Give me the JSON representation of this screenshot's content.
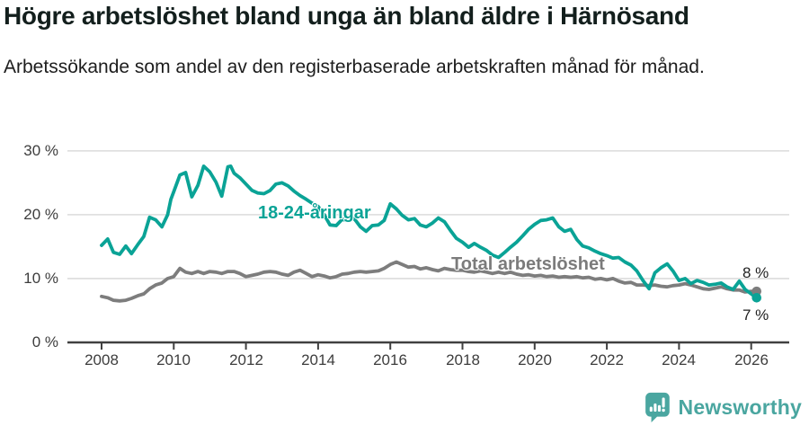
{
  "header": {
    "title": "Högre arbetslöshet bland unga än bland äldre i Härnösand",
    "subtitle": "Arbetssökande som andel av den registerbaserade arbetskraften månad för månad."
  },
  "chart_data": {
    "type": "line",
    "title": "Högre arbetslöshet bland unga än bland äldre i Härnösand",
    "subtitle": "Arbetssökande som andel av den registerbaserade arbetskraften månad för månad.",
    "unit": "%",
    "xlabel": "",
    "ylabel": "",
    "grid": true,
    "grid_color": "#e0e0e0",
    "axis_color": "#404040",
    "x_axis": {
      "min": 2007.05,
      "max": 2027.1,
      "ticks": [
        {
          "value": 2008,
          "label": "2008"
        },
        {
          "value": 2010,
          "label": "2010"
        },
        {
          "value": 2012,
          "label": "2012"
        },
        {
          "value": 2014,
          "label": "2014"
        },
        {
          "value": 2016,
          "label": "2016"
        },
        {
          "value": 2018,
          "label": "2018"
        },
        {
          "value": 2020,
          "label": "2020"
        },
        {
          "value": 2022,
          "label": "2022"
        },
        {
          "value": 2024,
          "label": "2024"
        },
        {
          "value": 2026,
          "label": "2026"
        }
      ]
    },
    "y_axis": {
      "min": 0,
      "max": 32,
      "gridlines": [
        30,
        20,
        10
      ],
      "ticks": [
        {
          "value": 30,
          "label": "30 %"
        },
        {
          "value": 20,
          "label": "20 %"
        },
        {
          "value": 10,
          "label": "10 %"
        },
        {
          "value": 0,
          "label": "0 %"
        }
      ]
    },
    "series": [
      {
        "id": "young",
        "name": "18-24-åringar",
        "color": "#0aa396",
        "end_label": "7 %",
        "end_value": 7,
        "points": [
          [
            2008.0,
            15.2
          ],
          [
            2008.17,
            16.2
          ],
          [
            2008.33,
            14.1
          ],
          [
            2008.5,
            13.8
          ],
          [
            2008.67,
            15.1
          ],
          [
            2008.83,
            13.9
          ],
          [
            2009.0,
            15.3
          ],
          [
            2009.17,
            16.6
          ],
          [
            2009.33,
            19.6
          ],
          [
            2009.5,
            19.2
          ],
          [
            2009.67,
            18.1
          ],
          [
            2009.83,
            20.0
          ],
          [
            2009.92,
            22.4
          ],
          [
            2010.0,
            23.6
          ],
          [
            2010.17,
            26.2
          ],
          [
            2010.33,
            26.6
          ],
          [
            2010.5,
            22.8
          ],
          [
            2010.67,
            24.6
          ],
          [
            2010.83,
            27.6
          ],
          [
            2011.0,
            26.7
          ],
          [
            2011.17,
            25.1
          ],
          [
            2011.33,
            22.9
          ],
          [
            2011.5,
            27.5
          ],
          [
            2011.58,
            27.6
          ],
          [
            2011.67,
            26.5
          ],
          [
            2011.83,
            25.8
          ],
          [
            2012.0,
            24.8
          ],
          [
            2012.17,
            23.8
          ],
          [
            2012.33,
            23.4
          ],
          [
            2012.5,
            23.3
          ],
          [
            2012.67,
            23.8
          ],
          [
            2012.83,
            24.8
          ],
          [
            2013.0,
            25.0
          ],
          [
            2013.17,
            24.5
          ],
          [
            2013.33,
            23.7
          ],
          [
            2013.5,
            23.0
          ],
          [
            2013.67,
            22.4
          ],
          [
            2013.83,
            21.8
          ],
          [
            2014.0,
            21.3
          ],
          [
            2014.17,
            20.0
          ],
          [
            2014.33,
            18.4
          ],
          [
            2014.5,
            18.3
          ],
          [
            2014.67,
            19.3
          ],
          [
            2014.83,
            19.0
          ],
          [
            2015.0,
            19.4
          ],
          [
            2015.17,
            18.1
          ],
          [
            2015.33,
            17.4
          ],
          [
            2015.5,
            18.3
          ],
          [
            2015.67,
            18.4
          ],
          [
            2015.83,
            19.1
          ],
          [
            2016.0,
            21.7
          ],
          [
            2016.17,
            20.9
          ],
          [
            2016.33,
            19.9
          ],
          [
            2016.5,
            19.2
          ],
          [
            2016.67,
            19.4
          ],
          [
            2016.83,
            18.4
          ],
          [
            2017.0,
            18.1
          ],
          [
            2017.17,
            18.7
          ],
          [
            2017.33,
            19.5
          ],
          [
            2017.5,
            18.9
          ],
          [
            2017.67,
            17.5
          ],
          [
            2017.83,
            16.3
          ],
          [
            2018.0,
            15.7
          ],
          [
            2018.17,
            14.9
          ],
          [
            2018.33,
            15.5
          ],
          [
            2018.5,
            14.9
          ],
          [
            2018.67,
            14.4
          ],
          [
            2018.83,
            13.7
          ],
          [
            2019.0,
            13.3
          ],
          [
            2019.17,
            14.1
          ],
          [
            2019.33,
            14.9
          ],
          [
            2019.5,
            15.7
          ],
          [
            2019.67,
            16.7
          ],
          [
            2019.83,
            17.7
          ],
          [
            2020.0,
            18.5
          ],
          [
            2020.17,
            19.1
          ],
          [
            2020.33,
            19.2
          ],
          [
            2020.5,
            19.5
          ],
          [
            2020.67,
            18.1
          ],
          [
            2020.83,
            17.4
          ],
          [
            2021.0,
            17.7
          ],
          [
            2021.17,
            16.1
          ],
          [
            2021.33,
            15.1
          ],
          [
            2021.5,
            14.8
          ],
          [
            2021.67,
            14.3
          ],
          [
            2021.83,
            13.9
          ],
          [
            2022.0,
            13.6
          ],
          [
            2022.17,
            13.2
          ],
          [
            2022.33,
            13.3
          ],
          [
            2022.5,
            12.6
          ],
          [
            2022.67,
            12.1
          ],
          [
            2022.83,
            11.2
          ],
          [
            2023.0,
            9.7
          ],
          [
            2023.17,
            8.4
          ],
          [
            2023.33,
            10.9
          ],
          [
            2023.5,
            11.7
          ],
          [
            2023.67,
            12.3
          ],
          [
            2023.83,
            11.2
          ],
          [
            2024.0,
            9.7
          ],
          [
            2024.17,
            10.0
          ],
          [
            2024.33,
            9.2
          ],
          [
            2024.5,
            9.7
          ],
          [
            2024.67,
            9.4
          ],
          [
            2024.83,
            9.0
          ],
          [
            2025.0,
            9.1
          ],
          [
            2025.17,
            9.3
          ],
          [
            2025.33,
            8.7
          ],
          [
            2025.5,
            8.3
          ],
          [
            2025.67,
            9.6
          ],
          [
            2025.83,
            8.3
          ],
          [
            2026.0,
            7.6
          ],
          [
            2026.15,
            7.0
          ]
        ]
      },
      {
        "id": "total",
        "name": "Total arbetslöshet",
        "color": "#7d7d7d",
        "end_label": "8 %",
        "end_value": 8,
        "points": [
          [
            2008.0,
            7.2
          ],
          [
            2008.17,
            7.0
          ],
          [
            2008.33,
            6.6
          ],
          [
            2008.5,
            6.5
          ],
          [
            2008.67,
            6.6
          ],
          [
            2008.83,
            6.9
          ],
          [
            2009.0,
            7.3
          ],
          [
            2009.17,
            7.6
          ],
          [
            2009.33,
            8.4
          ],
          [
            2009.5,
            9.0
          ],
          [
            2009.67,
            9.3
          ],
          [
            2009.83,
            10.0
          ],
          [
            2010.0,
            10.3
          ],
          [
            2010.17,
            11.6
          ],
          [
            2010.33,
            11.0
          ],
          [
            2010.5,
            10.8
          ],
          [
            2010.67,
            11.1
          ],
          [
            2010.83,
            10.8
          ],
          [
            2011.0,
            11.1
          ],
          [
            2011.17,
            11.0
          ],
          [
            2011.33,
            10.8
          ],
          [
            2011.5,
            11.1
          ],
          [
            2011.67,
            11.1
          ],
          [
            2011.83,
            10.8
          ],
          [
            2012.0,
            10.3
          ],
          [
            2012.17,
            10.5
          ],
          [
            2012.33,
            10.7
          ],
          [
            2012.5,
            11.0
          ],
          [
            2012.67,
            11.1
          ],
          [
            2012.83,
            11.0
          ],
          [
            2013.0,
            10.7
          ],
          [
            2013.17,
            10.5
          ],
          [
            2013.33,
            11.0
          ],
          [
            2013.5,
            11.3
          ],
          [
            2013.67,
            10.8
          ],
          [
            2013.83,
            10.3
          ],
          [
            2014.0,
            10.6
          ],
          [
            2014.17,
            10.4
          ],
          [
            2014.33,
            10.1
          ],
          [
            2014.5,
            10.3
          ],
          [
            2014.67,
            10.7
          ],
          [
            2014.83,
            10.8
          ],
          [
            2015.0,
            11.0
          ],
          [
            2015.17,
            11.1
          ],
          [
            2015.33,
            11.0
          ],
          [
            2015.5,
            11.1
          ],
          [
            2015.67,
            11.2
          ],
          [
            2015.83,
            11.6
          ],
          [
            2016.0,
            12.2
          ],
          [
            2016.17,
            12.6
          ],
          [
            2016.33,
            12.2
          ],
          [
            2016.5,
            11.8
          ],
          [
            2016.67,
            11.9
          ],
          [
            2016.83,
            11.5
          ],
          [
            2017.0,
            11.7
          ],
          [
            2017.17,
            11.4
          ],
          [
            2017.33,
            11.2
          ],
          [
            2017.5,
            11.6
          ],
          [
            2017.67,
            11.4
          ],
          [
            2017.83,
            11.3
          ],
          [
            2018.0,
            11.3
          ],
          [
            2018.17,
            11.1
          ],
          [
            2018.33,
            11.0
          ],
          [
            2018.5,
            11.2
          ],
          [
            2018.67,
            11.0
          ],
          [
            2018.83,
            10.8
          ],
          [
            2019.0,
            11.0
          ],
          [
            2019.17,
            10.8
          ],
          [
            2019.33,
            11.0
          ],
          [
            2019.5,
            10.7
          ],
          [
            2019.67,
            10.5
          ],
          [
            2019.83,
            10.6
          ],
          [
            2020.0,
            10.4
          ],
          [
            2020.17,
            10.5
          ],
          [
            2020.33,
            10.3
          ],
          [
            2020.5,
            10.4
          ],
          [
            2020.67,
            10.2
          ],
          [
            2020.83,
            10.3
          ],
          [
            2021.0,
            10.2
          ],
          [
            2021.17,
            10.3
          ],
          [
            2021.33,
            10.1
          ],
          [
            2021.5,
            10.2
          ],
          [
            2021.67,
            9.9
          ],
          [
            2021.83,
            10.0
          ],
          [
            2022.0,
            9.8
          ],
          [
            2022.17,
            10.0
          ],
          [
            2022.33,
            9.6
          ],
          [
            2022.5,
            9.3
          ],
          [
            2022.67,
            9.4
          ],
          [
            2022.83,
            9.0
          ],
          [
            2023.0,
            9.0
          ],
          [
            2023.17,
            8.9
          ],
          [
            2023.33,
            9.0
          ],
          [
            2023.5,
            8.8
          ],
          [
            2023.67,
            8.7
          ],
          [
            2023.83,
            8.9
          ],
          [
            2024.0,
            9.0
          ],
          [
            2024.17,
            9.2
          ],
          [
            2024.33,
            9.0
          ],
          [
            2024.5,
            8.7
          ],
          [
            2024.67,
            8.4
          ],
          [
            2024.83,
            8.3
          ],
          [
            2025.0,
            8.5
          ],
          [
            2025.17,
            8.7
          ],
          [
            2025.33,
            8.4
          ],
          [
            2025.5,
            8.2
          ],
          [
            2025.67,
            8.2
          ],
          [
            2025.83,
            7.9
          ],
          [
            2026.0,
            8.0
          ],
          [
            2026.15,
            8.0
          ]
        ]
      }
    ],
    "legend_position": "inline-labels"
  },
  "branding": {
    "name": "Newsworthy",
    "color": "#4aa6a0",
    "icon": "bar-chart-speech-bubble"
  }
}
